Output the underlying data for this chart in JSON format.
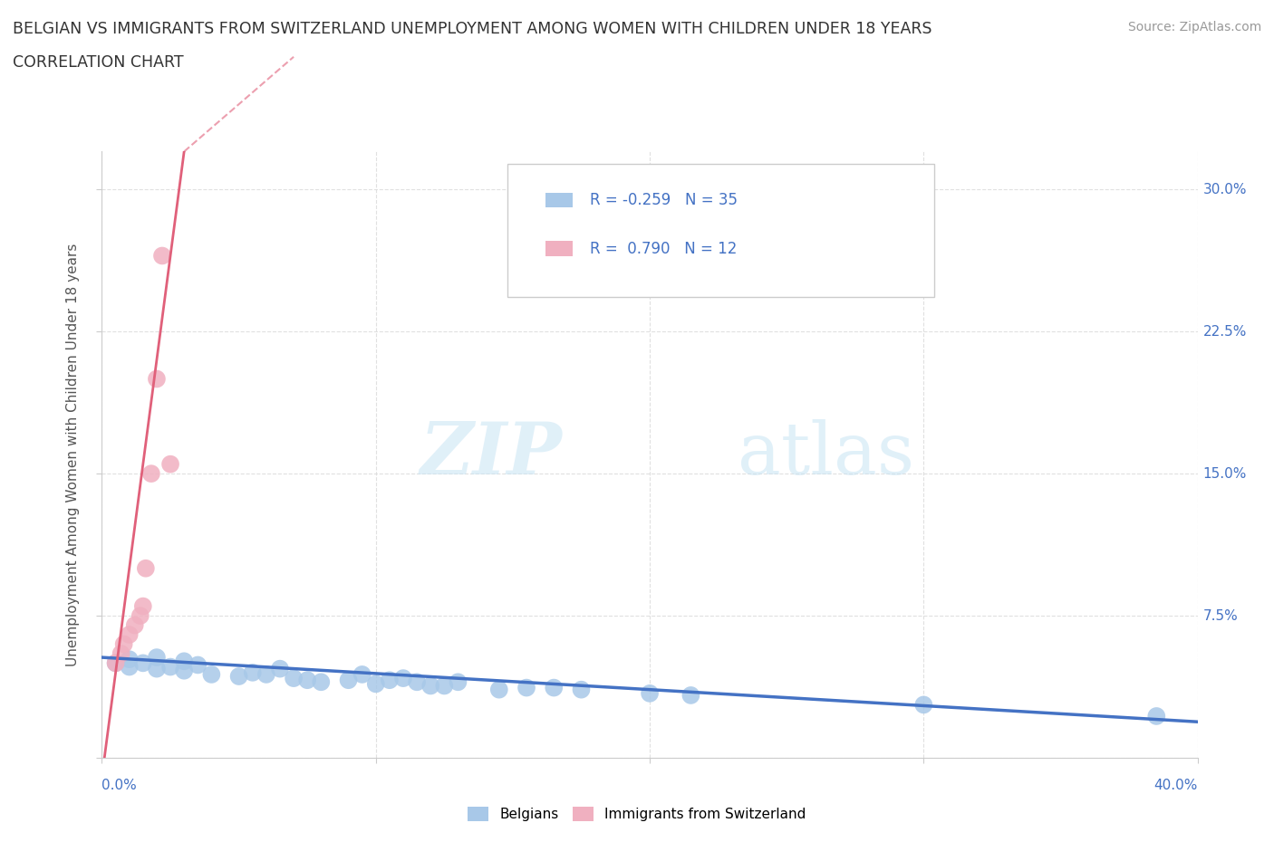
{
  "title_line1": "BELGIAN VS IMMIGRANTS FROM SWITZERLAND UNEMPLOYMENT AMONG WOMEN WITH CHILDREN UNDER 18 YEARS",
  "title_line2": "CORRELATION CHART",
  "source": "Source: ZipAtlas.com",
  "ylabel": "Unemployment Among Women with Children Under 18 years",
  "watermark_zip": "ZIP",
  "watermark_atlas": "atlas",
  "xlim": [
    0.0,
    0.4
  ],
  "ylim": [
    0.0,
    0.32
  ],
  "xticks": [
    0.0,
    0.1,
    0.2,
    0.3,
    0.4
  ],
  "yticks": [
    0.0,
    0.075,
    0.15,
    0.225,
    0.3
  ],
  "ytick_labels_right": [
    "",
    "7.5%",
    "15.0%",
    "22.5%",
    "30.0%"
  ],
  "xtick_labels": [
    "0.0%",
    "",
    "",
    "",
    "40.0%"
  ],
  "background_color": "#ffffff",
  "grid_color": "#dddddd",
  "belgian_color": "#a8c8e8",
  "swiss_color": "#f0b0c0",
  "belgian_line_color": "#4472c4",
  "swiss_line_color": "#e0607a",
  "belgian_R": -0.259,
  "belgian_N": 35,
  "swiss_R": 0.79,
  "swiss_N": 12,
  "belgian_x": [
    0.005,
    0.01,
    0.01,
    0.015,
    0.02,
    0.02,
    0.025,
    0.03,
    0.03,
    0.035,
    0.04,
    0.05,
    0.055,
    0.06,
    0.065,
    0.07,
    0.075,
    0.08,
    0.09,
    0.095,
    0.1,
    0.105,
    0.11,
    0.115,
    0.12,
    0.125,
    0.13,
    0.145,
    0.155,
    0.165,
    0.175,
    0.2,
    0.215,
    0.3,
    0.385
  ],
  "belgian_y": [
    0.05,
    0.048,
    0.052,
    0.05,
    0.047,
    0.053,
    0.048,
    0.046,
    0.051,
    0.049,
    0.044,
    0.043,
    0.045,
    0.044,
    0.047,
    0.042,
    0.041,
    0.04,
    0.041,
    0.044,
    0.039,
    0.041,
    0.042,
    0.04,
    0.038,
    0.038,
    0.04,
    0.036,
    0.037,
    0.037,
    0.036,
    0.034,
    0.033,
    0.028,
    0.022
  ],
  "swiss_x": [
    0.005,
    0.007,
    0.008,
    0.01,
    0.012,
    0.014,
    0.015,
    0.016,
    0.018,
    0.02,
    0.022,
    0.025
  ],
  "swiss_y": [
    0.05,
    0.055,
    0.06,
    0.065,
    0.07,
    0.075,
    0.08,
    0.1,
    0.15,
    0.2,
    0.265,
    0.155
  ]
}
